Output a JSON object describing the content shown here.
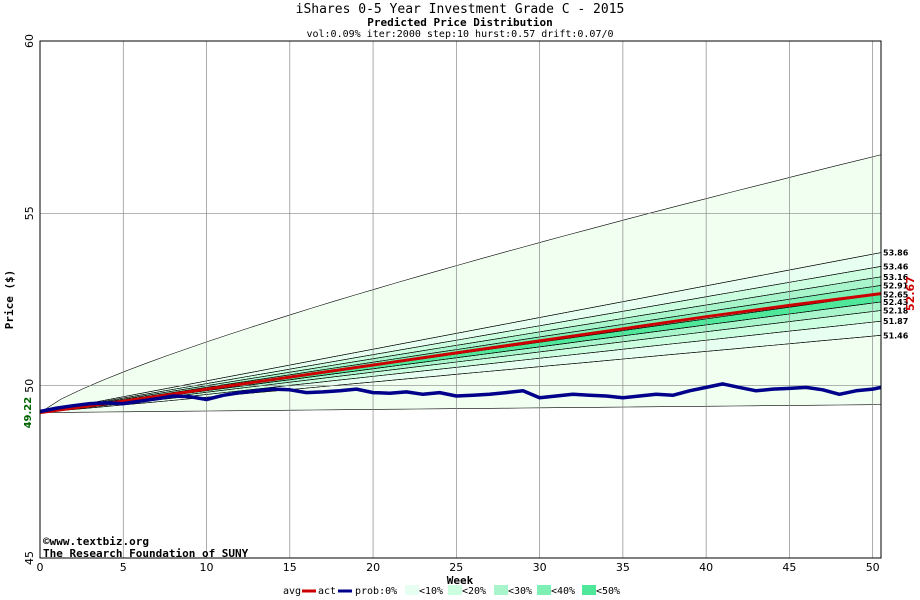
{
  "chart_data": {
    "type": "area",
    "title": "iShares 0-5 Year Investment Grade C - 2015",
    "subtitle": "Predicted Price Distribution",
    "params": "vol:0.09% iter:2000 step:10 hurst:0.57 drift:0.07/0",
    "xlabel": "Week",
    "ylabel": "Price ($)",
    "xlim": [
      0,
      50.5
    ],
    "ylim": [
      45,
      60
    ],
    "x_ticks": [
      "0",
      "5",
      "10",
      "15",
      "20",
      "25",
      "30",
      "35",
      "40",
      "45",
      "50"
    ],
    "x_tick_values": [
      0,
      5,
      10,
      15,
      20,
      25,
      30,
      35,
      40,
      45,
      50
    ],
    "y_ticks": [
      "45",
      "50",
      "55",
      "60"
    ],
    "y_tick_values": [
      45,
      50,
      55,
      60
    ],
    "grid": true,
    "start_price": 49.22,
    "start_label": "49.22",
    "end_avg_label": "52.67",
    "end_week": 50.5,
    "bands": [
      {
        "name": "0%",
        "upper": 56.7,
        "lower": 49.45,
        "color": "#f0fff0"
      },
      {
        "name": "10%",
        "upper": 53.86,
        "lower": 51.46,
        "color": "#e6fff0"
      },
      {
        "name": "20%",
        "upper": 53.46,
        "lower": 51.87,
        "color": "#ccffe0"
      },
      {
        "name": "30%",
        "upper": 53.16,
        "lower": 52.18,
        "color": "#a8f5cc"
      },
      {
        "name": "40%",
        "upper": 52.91,
        "lower": 52.43,
        "color": "#7ff0b5"
      },
      {
        "name": "50%",
        "upper": 52.65,
        "lower": 52.43,
        "color": "#4fe89a"
      }
    ],
    "right_labels": [
      "53.86",
      "53.46",
      "53.16",
      "52.91",
      "52.65",
      "52.43",
      "52.18",
      "51.87",
      "51.46"
    ],
    "right_label_values": [
      53.86,
      53.46,
      53.16,
      52.91,
      52.65,
      52.43,
      52.18,
      51.87,
      51.46
    ],
    "series": [
      {
        "name": "avg",
        "color": "#cc0000",
        "x": [
          0,
          5,
          10,
          15,
          20,
          25,
          30,
          35,
          40,
          45,
          50.5
        ],
        "y": [
          49.22,
          49.55,
          49.9,
          50.25,
          50.6,
          50.95,
          51.3,
          51.65,
          52.0,
          52.33,
          52.67
        ]
      },
      {
        "name": "act",
        "color": "#00008b",
        "x": [
          0,
          1,
          2,
          3,
          4,
          5,
          6,
          7,
          8,
          9,
          10,
          11,
          12,
          13,
          14,
          15,
          16,
          17,
          18,
          19,
          20,
          21,
          22,
          23,
          24,
          25,
          26,
          27,
          28,
          29,
          30,
          31,
          32,
          33,
          34,
          35,
          36,
          37,
          38,
          39,
          40,
          41,
          42,
          43,
          44,
          45,
          46,
          47,
          48,
          49,
          50,
          50.5
        ],
        "y": [
          49.25,
          49.35,
          49.42,
          49.48,
          49.5,
          49.48,
          49.55,
          49.62,
          49.7,
          49.68,
          49.6,
          49.72,
          49.8,
          49.85,
          49.9,
          49.88,
          49.8,
          49.82,
          49.85,
          49.9,
          49.8,
          49.78,
          49.82,
          49.75,
          49.8,
          49.7,
          49.72,
          49.75,
          49.8,
          49.85,
          49.65,
          49.7,
          49.75,
          49.72,
          49.7,
          49.65,
          49.7,
          49.75,
          49.72,
          49.85,
          49.95,
          50.05,
          49.95,
          49.85,
          49.9,
          49.92,
          49.95,
          49.88,
          49.75,
          49.85,
          49.9,
          49.95
        ]
      }
    ],
    "legend": {
      "items": [
        "avg",
        "act",
        "prob:0%",
        "<10%",
        "<20%",
        "<30%",
        "<40%",
        "<50%"
      ],
      "placement": "bottom"
    }
  },
  "watermark": {
    "line1": "©www.textbiz.org",
    "line2": "The Research Foundation of SUNY"
  }
}
